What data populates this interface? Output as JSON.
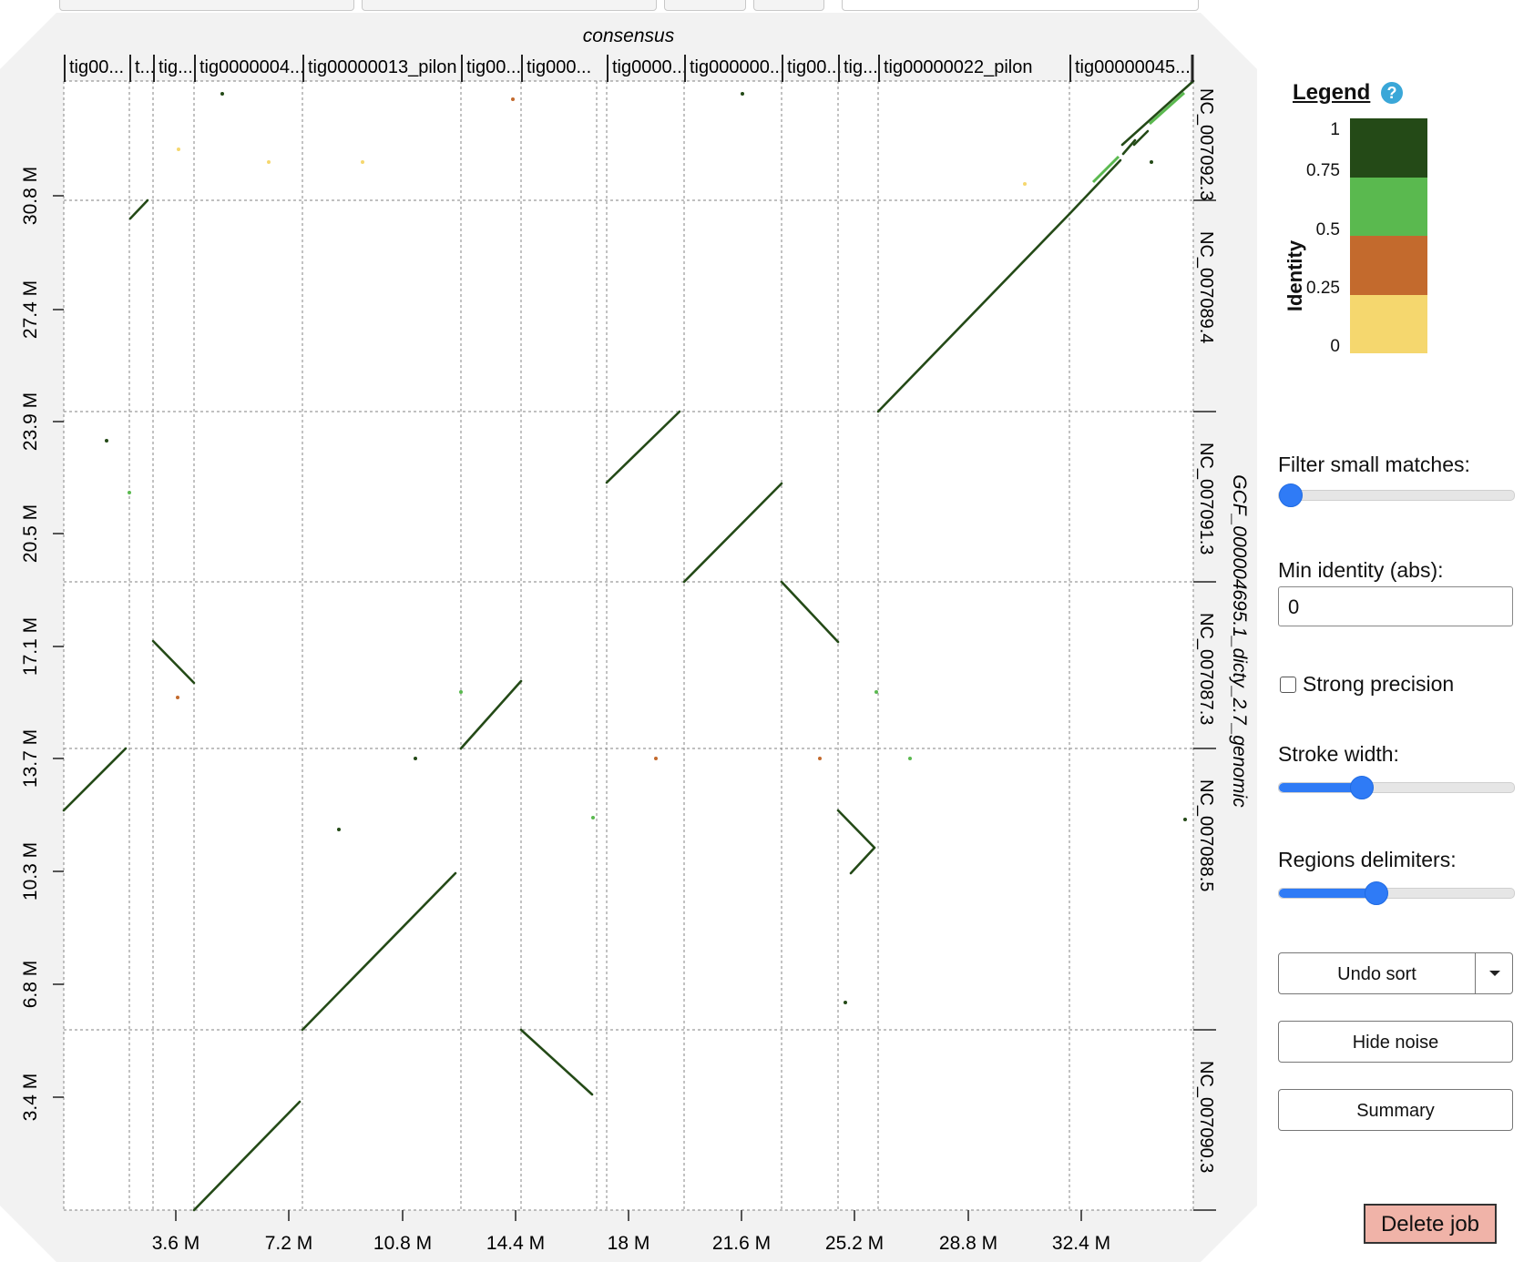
{
  "plot": {
    "x_title": "consensus",
    "y_title": "GCF_000004695.1_dicty_2.7_genomic",
    "x_contigs": [
      "tig00...",
      "t...",
      "tig...",
      "tig0000004...",
      "tig00000013_pilon",
      "tig00...",
      "tig000...",
      "tig0000...",
      "tig000000...",
      "tig00...",
      "tig...",
      "tig00000022_pilon",
      "tig00000045..."
    ],
    "y_contigs": [
      "NC_007092.3",
      "NC_007089.4",
      "NC_007091.3",
      "NC_007087.3",
      "NC_007088.5",
      "NC_007090.3"
    ],
    "x_ticks": [
      "3.6 M",
      "7.2 M",
      "10.8 M",
      "14.4 M",
      "18 M",
      "21.6 M",
      "25.2 M",
      "28.8 M",
      "32.4 M"
    ],
    "y_ticks": [
      "30.8 M",
      "27.4 M",
      "23.9 M",
      "20.5 M",
      "17.1 M",
      "13.7 M",
      "10.3 M",
      "6.8 M",
      "3.4 M"
    ]
  },
  "legend": {
    "title": "Legend",
    "help_glyph": "?",
    "axis_label": "Identity",
    "ticks": [
      "1",
      "0.75",
      "0.5",
      "0.25",
      "0"
    ],
    "colors": [
      "#244a17",
      "#5ab94f",
      "#c36a2d",
      "#f5d76e"
    ]
  },
  "controls": {
    "filter_small_matches": {
      "label": "Filter small matches:",
      "value": 0
    },
    "min_identity": {
      "label": "Min identity (abs):",
      "value": "0"
    },
    "strong_precision": {
      "label": "Strong precision",
      "checked": false
    },
    "stroke_width": {
      "label": "Stroke width:",
      "value": 0.32
    },
    "regions_delimiters": {
      "label": "Regions delimiters:",
      "value": 0.38
    }
  },
  "buttons": {
    "undo_sort": "Undo sort",
    "hide_noise": "Hide noise",
    "summary": "Summary",
    "delete_job": "Delete job"
  },
  "colors": {
    "match_dark": "#244a17",
    "match_light": "#5ab94f",
    "accent": "#2f7bf6",
    "delete_bg": "#f0b3a8"
  }
}
